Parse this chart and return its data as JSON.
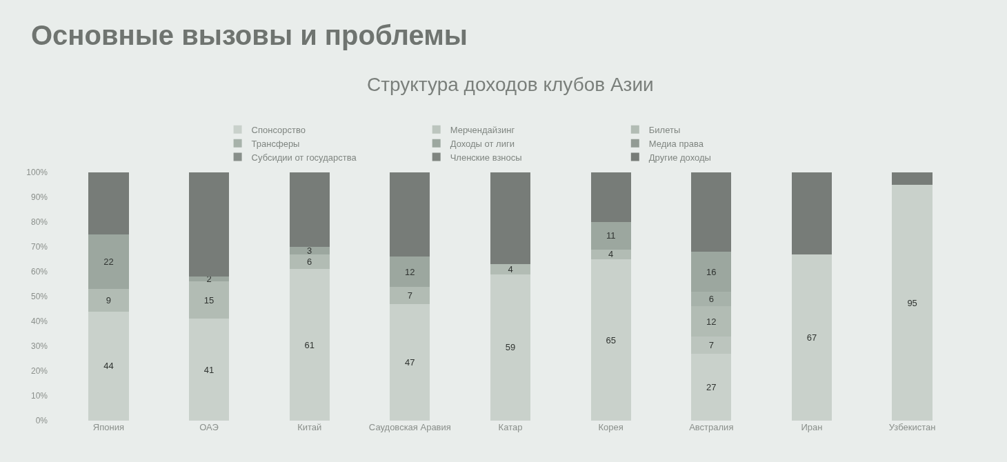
{
  "chart_data": {
    "type": "bar",
    "stacked": true,
    "title": "Основные вызовы и проблемы",
    "subtitle": "Структура доходов клубов Азии",
    "categories": [
      "Япония",
      "ОАЭ",
      "Китай",
      "Саудовская Аравия",
      "Катар",
      "Корея",
      "Австралия",
      "Иран",
      "Узбекистан"
    ],
    "series": [
      {
        "name": "Спонсорство",
        "color": "#c9d1cb",
        "values": [
          44,
          41,
          61,
          47,
          59,
          65,
          27,
          67,
          95
        ],
        "value_labels": [
          "44",
          "41",
          "61",
          "47",
          "59",
          "65",
          "27",
          "67",
          "95"
        ]
      },
      {
        "name": "Мерчендайзинг",
        "color": "#bcc5be",
        "values": [
          0,
          0,
          0,
          0,
          0,
          0,
          7,
          0,
          0
        ],
        "value_labels": [
          null,
          null,
          null,
          null,
          null,
          null,
          "7",
          null,
          null
        ]
      },
      {
        "name": "Билеты",
        "color": "#b2bcb4",
        "values": [
          9,
          15,
          6,
          7,
          4,
          4,
          12,
          0,
          0
        ],
        "value_labels": [
          "9",
          "15",
          "6",
          "7",
          "4",
          "4",
          "12",
          null,
          null
        ]
      },
      {
        "name": "Трансферы",
        "color": "#a7b2aa",
        "values": [
          0,
          0,
          0,
          0,
          0,
          0,
          6,
          0,
          0
        ],
        "value_labels": [
          null,
          null,
          null,
          null,
          null,
          null,
          "6",
          null,
          null
        ]
      },
      {
        "name": "Доходы от лиги",
        "color": "#9ca79f",
        "values": [
          22,
          2,
          3,
          12,
          0,
          11,
          16,
          0,
          0
        ],
        "value_labels": [
          "22",
          "2",
          "3",
          "12",
          null,
          "11",
          "16",
          null,
          null
        ]
      },
      {
        "name": "Медиа права",
        "color": "#929b94",
        "values": [
          0,
          0,
          0,
          0,
          0,
          0,
          0,
          0,
          0
        ],
        "value_labels": [
          null,
          null,
          null,
          null,
          null,
          null,
          null,
          null,
          null
        ]
      },
      {
        "name": "Субсидии от государства",
        "color": "#888f8a",
        "values": [
          0,
          0,
          0,
          0,
          0,
          0,
          0,
          0,
          0
        ],
        "value_labels": [
          null,
          null,
          null,
          null,
          null,
          null,
          null,
          null,
          null
        ]
      },
      {
        "name": "Членские взносы",
        "color": "#7f8580",
        "values": [
          0,
          0,
          0,
          0,
          0,
          0,
          0,
          0,
          0
        ],
        "value_labels": [
          null,
          null,
          null,
          null,
          null,
          null,
          null,
          null,
          null
        ]
      },
      {
        "name": "Другие доходы",
        "color": "#777c78",
        "values": [
          25,
          42,
          30,
          34,
          37,
          20,
          32,
          33,
          5
        ],
        "value_labels": [
          null,
          null,
          null,
          null,
          null,
          null,
          null,
          null,
          null
        ]
      }
    ],
    "ylim": [
      0,
      100
    ],
    "yticks": [
      {
        "value": 0,
        "label": "0%"
      },
      {
        "value": 10,
        "label": "10%"
      },
      {
        "value": 20,
        "label": "20%"
      },
      {
        "value": 30,
        "label": "30%"
      },
      {
        "value": 40,
        "label": "40%"
      },
      {
        "value": 50,
        "label": "50%"
      },
      {
        "value": 60,
        "label": "60%"
      },
      {
        "value": 70,
        "label": "70%"
      },
      {
        "value": 80,
        "label": "80%"
      },
      {
        "value": 90,
        "label": "90%"
      },
      {
        "value": 100,
        "label": "100%"
      }
    ],
    "legend": "top",
    "grid": false
  }
}
